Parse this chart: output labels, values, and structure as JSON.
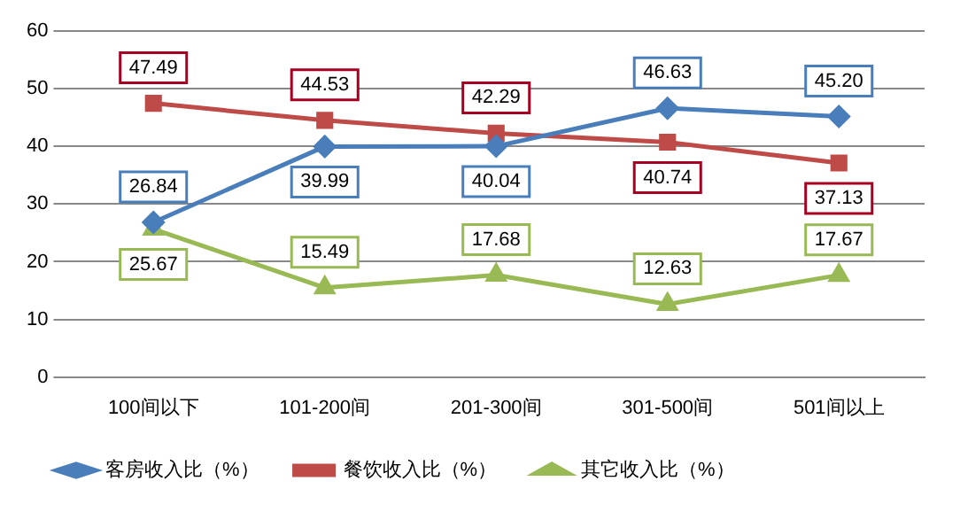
{
  "chart_data": {
    "type": "line",
    "categories": [
      "100间以下",
      "101-200间",
      "201-300间",
      "301-500间",
      "501间以上"
    ],
    "series": [
      {
        "name": "客房收入比（%）",
        "color": "#4a7ebb",
        "marker": "diamond",
        "values": [
          26.84,
          39.99,
          40.04,
          46.63,
          45.2
        ],
        "value_labels": [
          "26.84",
          "39.99",
          "40.04",
          "46.63",
          "45.20"
        ]
      },
      {
        "name": "餐饮收入比（%）",
        "color": "#be4b48",
        "marker": "square",
        "values": [
          47.49,
          44.53,
          42.29,
          40.74,
          37.13
        ],
        "value_labels": [
          "47.49",
          "44.53",
          "42.29",
          "40.74",
          "37.13"
        ]
      },
      {
        "name": "其它收入比（%）",
        "color": "#98b954",
        "marker": "triangle",
        "values": [
          25.67,
          15.49,
          17.68,
          12.63,
          17.67
        ],
        "value_labels": [
          "25.67",
          "15.49",
          "17.68",
          "12.63",
          "17.67"
        ]
      }
    ],
    "ylim": [
      0,
      60
    ],
    "yticks": [
      0,
      10,
      20,
      30,
      40,
      50,
      60
    ],
    "grid": "y",
    "legend": "bottom",
    "line_style": "solid"
  }
}
